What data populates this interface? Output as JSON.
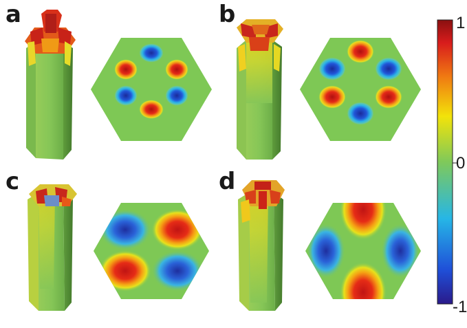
{
  "panels": [
    {
      "letter": "a"
    },
    {
      "letter": "b"
    },
    {
      "letter": "c"
    },
    {
      "letter": "d"
    }
  ],
  "colorbar": {
    "max_label": "1",
    "mid_label": "0",
    "min_label": "-1",
    "colormap": "jet",
    "stops": [
      "#2a1a8a",
      "#1f4fd8",
      "#26b6e6",
      "#7fc95a",
      "#f2e30a",
      "#f07a12",
      "#d81c1c",
      "#8a1010"
    ]
  },
  "colors": {
    "neutral": "#7ec855",
    "positive": "#d81c1c",
    "negative": "#1f4fd8"
  }
}
